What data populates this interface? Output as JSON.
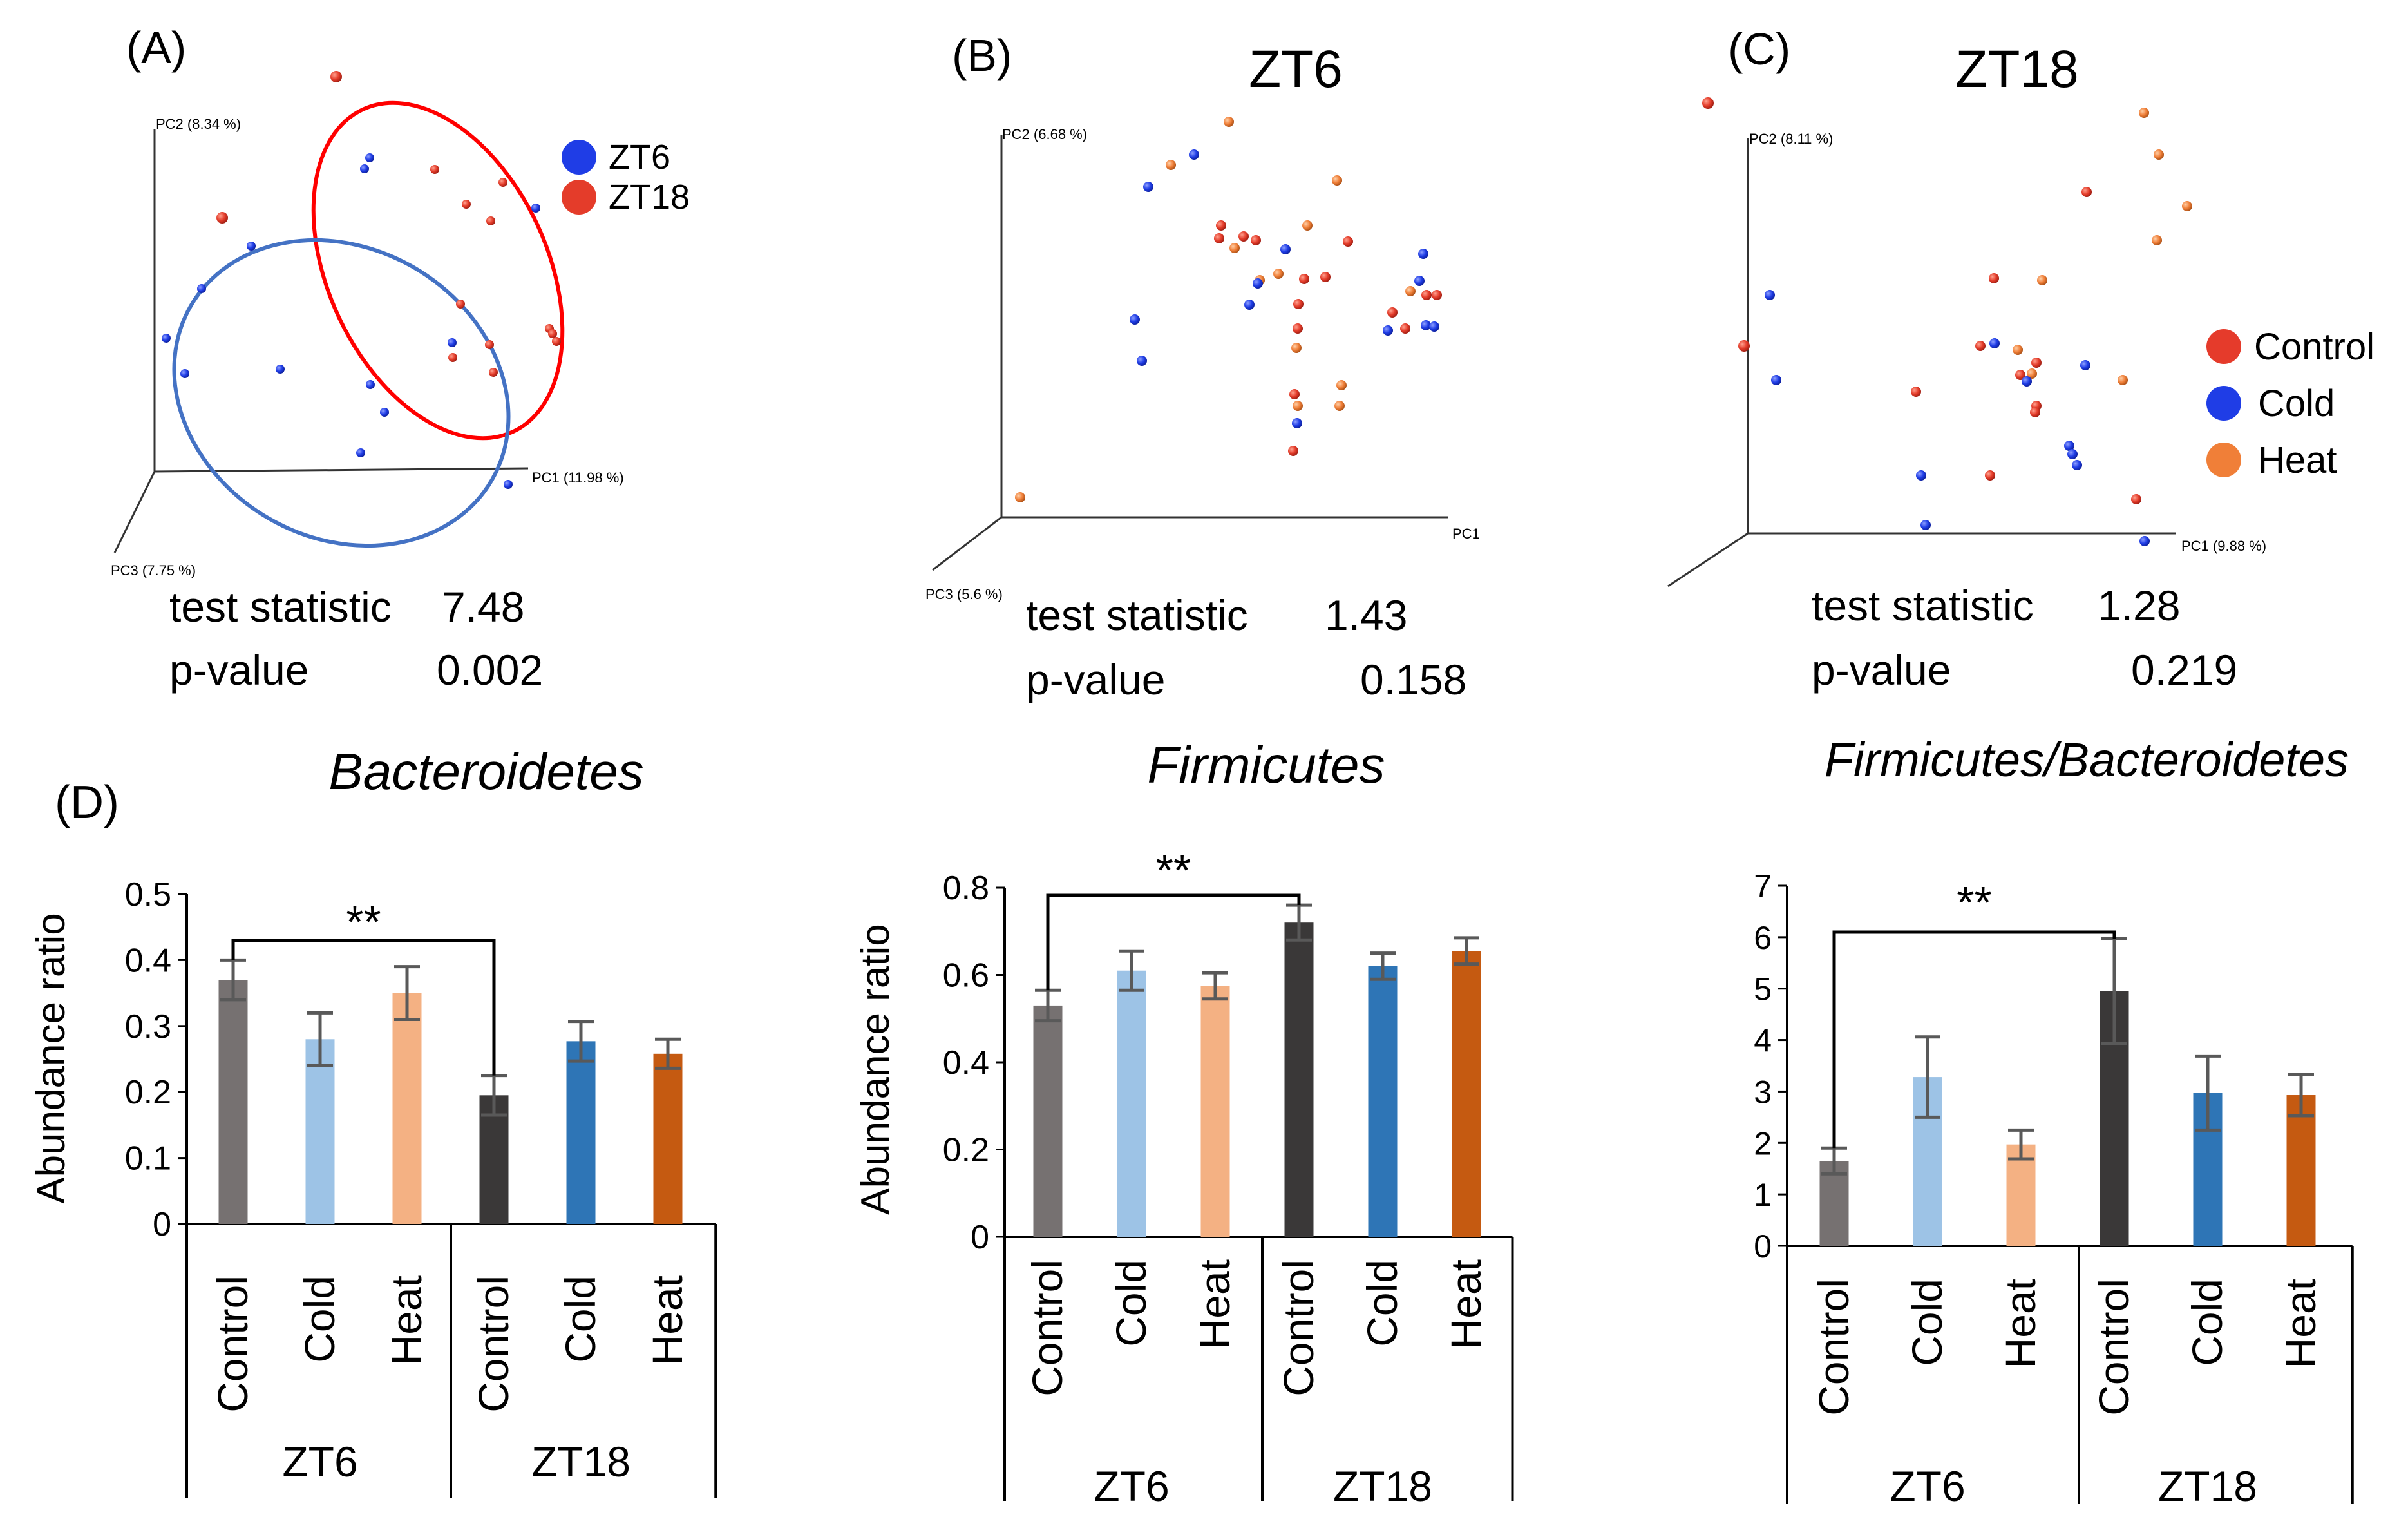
{
  "figure": {
    "domain": "scientific-figure",
    "panel_labels": [
      "(A)",
      "(B)",
      "(C)",
      "(D)"
    ]
  },
  "colors": {
    "zt6_blue": "#1f3de6",
    "zt18_red": "#e43c2a",
    "control_red": "#e53b2b",
    "cold_blue": "#1f3de6",
    "heat_orange": "#f07f38",
    "ellipse_red": "#ff0000",
    "ellipse_blue": "#4472c4",
    "bar_zt6_control": "#767171",
    "bar_zt6_cold": "#9dc3e6",
    "bar_zt6_heat": "#f4b183",
    "bar_zt18_control": "#3a3838",
    "bar_zt18_cold": "#2e75b6",
    "bar_zt18_heat": "#c55a11",
    "error_bar": "#595959",
    "axis": "#000000"
  },
  "chart_data": [
    {
      "type": "scatter",
      "panel": "(A)",
      "title": "",
      "axes": {
        "pc1": "PC1 (11.98 %)",
        "pc2": "PC2 (8.34 %)",
        "pc3": "PC3 (7.75 %)"
      },
      "legend": {
        "position": "right",
        "entries": [
          "ZT6",
          "ZT18"
        ]
      },
      "stats": {
        "test_statistic_label": "test statistic",
        "test_statistic": "7.48",
        "p_value_label": "p-value",
        "p_value": "0.002"
      }
    },
    {
      "type": "scatter",
      "panel": "(B)",
      "title": "ZT6",
      "axes": {
        "pc1": "PC1",
        "pc2": "PC2 (6.68 %)",
        "pc3": "PC3 (5.6 %)"
      },
      "stats": {
        "test_statistic_label": "test statistic",
        "test_statistic": "1.43",
        "p_value_label": "p-value",
        "p_value": "0.158"
      }
    },
    {
      "type": "scatter",
      "panel": "(C)",
      "title": "ZT18",
      "axes": {
        "pc1": "PC1 (9.88 %)",
        "pc2": "PC2 (8.11 %)",
        "pc3": ""
      },
      "legend": {
        "position": "right",
        "entries": [
          "Control",
          "Cold",
          "Heat"
        ]
      },
      "stats": {
        "test_statistic_label": "test statistic",
        "test_statistic": "1.28",
        "p_value_label": "p-value",
        "p_value": "0.219"
      }
    },
    {
      "type": "bar",
      "panel": "(D)",
      "title": "Bacteroidetes",
      "ylabel": "Abundance ratio",
      "ylim": [
        0,
        0.5
      ],
      "yticks": [
        "0",
        "0.1",
        "0.2",
        "0.3",
        "0.4",
        "0.5"
      ],
      "categories": [
        "Control",
        "Cold",
        "Heat",
        "Control",
        "Cold",
        "Heat"
      ],
      "groups": [
        "ZT6",
        "ZT18"
      ],
      "values": [
        0.37,
        0.28,
        0.35,
        0.195,
        0.277,
        0.258
      ],
      "errors": [
        0.03,
        0.04,
        0.04,
        0.03,
        0.03,
        0.022
      ],
      "significance": {
        "label": "**",
        "from": 0,
        "to": 3
      }
    },
    {
      "type": "bar",
      "panel": "(D)",
      "title": "Firmicutes",
      "ylabel": "Abundance ratio",
      "ylim": [
        0,
        0.8
      ],
      "yticks": [
        "0",
        "0.2",
        "0.4",
        "0.6",
        "0.8"
      ],
      "categories": [
        "Control",
        "Cold",
        "Heat",
        "Control",
        "Cold",
        "Heat"
      ],
      "groups": [
        "ZT6",
        "ZT18"
      ],
      "values": [
        0.53,
        0.61,
        0.575,
        0.72,
        0.62,
        0.655
      ],
      "errors": [
        0.035,
        0.045,
        0.03,
        0.04,
        0.03,
        0.03
      ],
      "significance": {
        "label": "**",
        "from": 0,
        "to": 3
      }
    },
    {
      "type": "bar",
      "panel": "(D)",
      "title": "Firmicutes/Bacteroidetes",
      "ylabel": "",
      "ylim": [
        0,
        7
      ],
      "yticks": [
        "0",
        "1",
        "2",
        "3",
        "4",
        "5",
        "6",
        "7"
      ],
      "categories": [
        "Control",
        "Cold",
        "Heat",
        "Control",
        "Cold",
        "Heat"
      ],
      "groups": [
        "ZT6",
        "ZT18"
      ],
      "values": [
        1.65,
        3.28,
        1.97,
        4.95,
        2.97,
        2.93
      ],
      "errors": [
        0.25,
        0.78,
        0.28,
        1.02,
        0.72,
        0.4
      ],
      "significance": {
        "label": "**",
        "from": 0,
        "to": 3
      }
    }
  ]
}
